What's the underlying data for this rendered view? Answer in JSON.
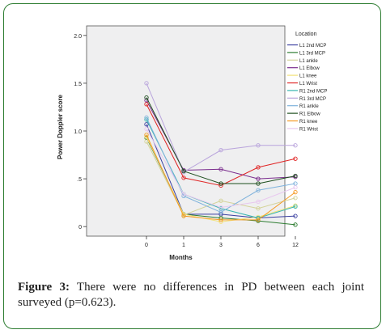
{
  "caption": {
    "label": "Figure 3:",
    "text": "There were no differences in PD between each joint surveyed (p=0.623)."
  },
  "chart_data": {
    "type": "line",
    "xlabel": "Months",
    "ylabel": "Power Doppler score",
    "categories": [
      "0",
      "1",
      "3",
      "6",
      "12"
    ],
    "ylim": [
      -0.1,
      2.1
    ],
    "yticks": [
      "0",
      ".5",
      "1.0",
      "1.5",
      "2.0"
    ],
    "grid": false,
    "legend_title": "Location",
    "legend_position": "right",
    "series": [
      {
        "name": "L1 2nd MCP",
        "color": "#3a3fa0",
        "values": [
          1.07,
          0.13,
          0.13,
          0.09,
          0.11
        ]
      },
      {
        "name": "L1 3rd MCP",
        "color": "#2e7d32",
        "values": [
          0.93,
          0.13,
          0.09,
          0.06,
          0.02
        ]
      },
      {
        "name": "L1 ankle",
        "color": "#d4d39a",
        "values": [
          0.89,
          0.12,
          0.27,
          0.19,
          0.3
        ]
      },
      {
        "name": "L1 Elbow",
        "color": "#7b2d8e",
        "values": [
          1.32,
          0.59,
          0.6,
          0.5,
          0.52
        ]
      },
      {
        "name": "L1 knee",
        "color": "#f2e27a",
        "values": [
          0.94,
          0.13,
          0.05,
          0.1,
          0.22
        ]
      },
      {
        "name": "L1 Wrist",
        "color": "#e02424",
        "values": [
          1.28,
          0.51,
          0.43,
          0.62,
          0.71
        ]
      },
      {
        "name": "R1 2nd MCP",
        "color": "#39b6b0",
        "values": [
          1.12,
          0.34,
          0.19,
          0.09,
          0.21
        ]
      },
      {
        "name": "R1 3rd MCP",
        "color": "#b9a4dc",
        "values": [
          1.5,
          0.57,
          0.8,
          0.85,
          0.85
        ]
      },
      {
        "name": "R1 ankle",
        "color": "#7fb2dc",
        "values": [
          1.14,
          0.32,
          0.15,
          0.38,
          0.45
        ]
      },
      {
        "name": "R1 Elbow",
        "color": "#1e4f1e",
        "values": [
          1.35,
          0.58,
          0.45,
          0.45,
          0.53
        ]
      },
      {
        "name": "R1 knee",
        "color": "#f59a23",
        "values": [
          0.96,
          0.11,
          0.07,
          0.07,
          0.36
        ]
      },
      {
        "name": "R1 Wrist",
        "color": "#e8c8ef",
        "values": [
          1.02,
          0.34,
          0.2,
          0.26,
          0.41
        ]
      }
    ]
  }
}
